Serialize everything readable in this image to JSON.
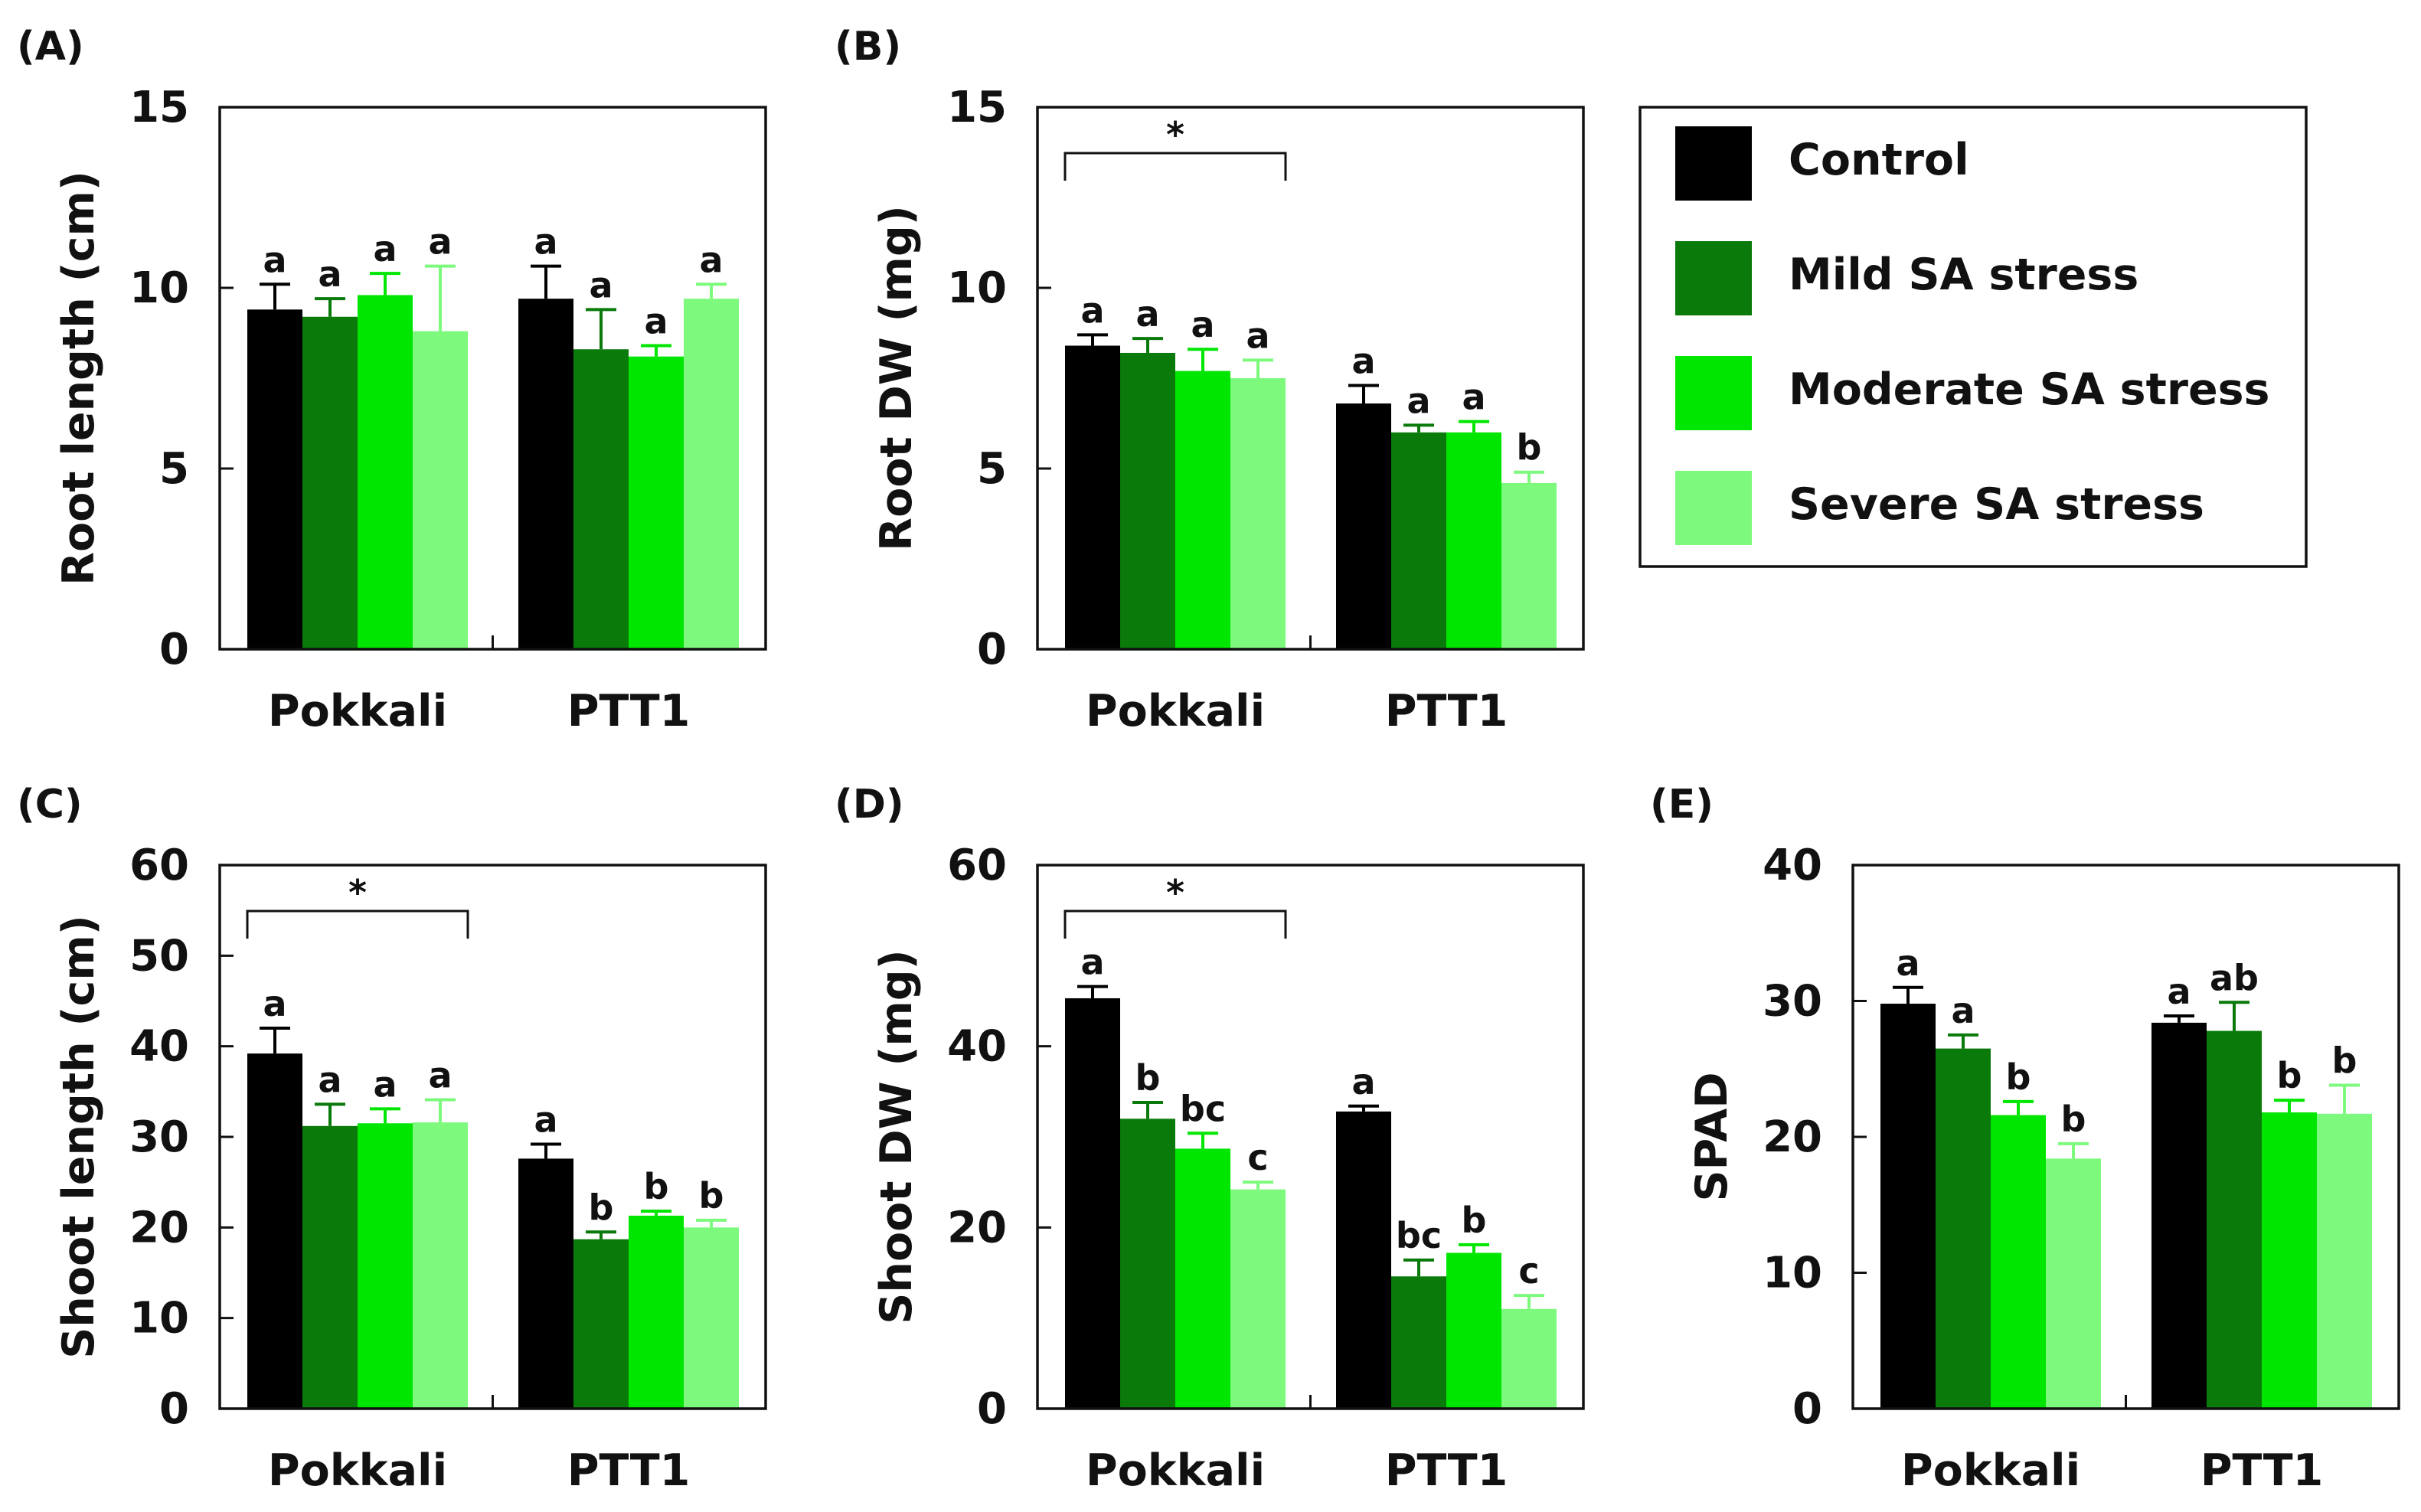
{
  "figure": {
    "legend": {
      "entries": [
        {
          "label": "Control",
          "color": "#000000"
        },
        {
          "label": "Mild SA stress",
          "color": "#0a7a0a"
        },
        {
          "label": "Moderate SA stress",
          "color": "#00e600"
        },
        {
          "label": "Severe SA stress",
          "color": "#7dfa7d"
        }
      ]
    }
  },
  "chart_data": [
    {
      "panel": "(A)",
      "type": "bar",
      "ylabel": "Root length (cm)",
      "ylim": [
        0,
        15
      ],
      "yticks": [
        "0",
        "5",
        "10",
        "15"
      ],
      "categories": [
        "Pokkali",
        "PTT1"
      ],
      "series": [
        {
          "name": "Control",
          "values": [
            9.4,
            9.7
          ],
          "errors": [
            0.7,
            0.9
          ],
          "letters": [
            "a",
            "a"
          ]
        },
        {
          "name": "Mild SA stress",
          "values": [
            9.2,
            8.3
          ],
          "errors": [
            0.5,
            1.1
          ],
          "letters": [
            "a",
            "a"
          ]
        },
        {
          "name": "Moderate SA stress",
          "values": [
            9.8,
            8.1
          ],
          "errors": [
            0.6,
            0.3
          ],
          "letters": [
            "a",
            "a"
          ]
        },
        {
          "name": "Severe SA stress",
          "values": [
            8.8,
            9.7
          ],
          "errors": [
            1.8,
            0.4
          ],
          "letters": [
            "a",
            "a"
          ]
        }
      ],
      "significance": null
    },
    {
      "panel": "(B)",
      "type": "bar",
      "ylabel": "Root DW (mg)",
      "ylim": [
        0,
        15
      ],
      "yticks": [
        "0",
        "5",
        "10",
        "15"
      ],
      "categories": [
        "Pokkali",
        "PTT1"
      ],
      "series": [
        {
          "name": "Control",
          "values": [
            8.4,
            6.8
          ],
          "errors": [
            0.3,
            0.5
          ],
          "letters": [
            "a",
            "a"
          ]
        },
        {
          "name": "Mild SA stress",
          "values": [
            8.2,
            6.0
          ],
          "errors": [
            0.4,
            0.2
          ],
          "letters": [
            "a",
            "a"
          ]
        },
        {
          "name": "Moderate SA stress",
          "values": [
            7.7,
            6.0
          ],
          "errors": [
            0.6,
            0.3
          ],
          "letters": [
            "a",
            "a"
          ]
        },
        {
          "name": "Severe SA stress",
          "values": [
            7.5,
            4.6
          ],
          "errors": [
            0.5,
            0.3
          ],
          "letters": [
            "a",
            "b"
          ]
        }
      ],
      "significance": {
        "group": 0,
        "mark": "*"
      }
    },
    {
      "panel": "(C)",
      "type": "bar",
      "ylabel": "Shoot length (cm)",
      "ylim": [
        0,
        60
      ],
      "yticks": [
        "0",
        "10",
        "20",
        "30",
        "40",
        "50",
        "60"
      ],
      "categories": [
        "Pokkali",
        "PTT1"
      ],
      "series": [
        {
          "name": "Control",
          "values": [
            39.2,
            27.6
          ],
          "errors": [
            2.8,
            1.6
          ],
          "letters": [
            "a",
            "a"
          ]
        },
        {
          "name": "Mild SA stress",
          "values": [
            31.2,
            18.7
          ],
          "errors": [
            2.4,
            0.8
          ],
          "letters": [
            "a",
            "b"
          ]
        },
        {
          "name": "Moderate SA stress",
          "values": [
            31.5,
            21.3
          ],
          "errors": [
            1.6,
            0.5
          ],
          "letters": [
            "a",
            "b"
          ]
        },
        {
          "name": "Severe SA stress",
          "values": [
            31.6,
            20.0
          ],
          "errors": [
            2.5,
            0.8
          ],
          "letters": [
            "a",
            "b"
          ]
        }
      ],
      "significance": {
        "group": 0,
        "mark": "*"
      }
    },
    {
      "panel": "(D)",
      "type": "bar",
      "ylabel": "Shoot DW (mg)",
      "ylim": [
        0,
        60
      ],
      "yticks": [
        "0",
        "20",
        "40",
        "60"
      ],
      "categories": [
        "Pokkali",
        "PTT1"
      ],
      "series": [
        {
          "name": "Control",
          "values": [
            45.3,
            32.8
          ],
          "errors": [
            1.3,
            0.6
          ],
          "letters": [
            "a",
            "a"
          ]
        },
        {
          "name": "Mild SA stress",
          "values": [
            32.0,
            14.6
          ],
          "errors": [
            1.8,
            1.8
          ],
          "letters": [
            "b",
            "bc"
          ]
        },
        {
          "name": "Moderate SA stress",
          "values": [
            28.7,
            17.2
          ],
          "errors": [
            1.7,
            0.9
          ],
          "letters": [
            "bc",
            "b"
          ]
        },
        {
          "name": "Severe SA stress",
          "values": [
            24.2,
            11.0
          ],
          "errors": [
            0.8,
            1.5
          ],
          "letters": [
            "c",
            "c"
          ]
        }
      ],
      "significance": {
        "group": 0,
        "mark": "*"
      }
    },
    {
      "panel": "(E)",
      "type": "bar",
      "ylabel": "SPAD",
      "ylim": [
        0,
        40
      ],
      "yticks": [
        "0",
        "10",
        "20",
        "30",
        "40"
      ],
      "categories": [
        "Pokkali",
        "PTT1"
      ],
      "series": [
        {
          "name": "Control",
          "values": [
            29.8,
            28.4
          ],
          "errors": [
            1.2,
            0.5
          ],
          "letters": [
            "a",
            "a"
          ]
        },
        {
          "name": "Mild SA stress",
          "values": [
            26.5,
            27.8
          ],
          "errors": [
            1.0,
            2.1
          ],
          "letters": [
            "a",
            "ab"
          ]
        },
        {
          "name": "Moderate SA stress",
          "values": [
            21.6,
            21.8
          ],
          "errors": [
            1.0,
            0.9
          ],
          "letters": [
            "b",
            "b"
          ]
        },
        {
          "name": "Severe SA stress",
          "values": [
            18.4,
            21.7
          ],
          "errors": [
            1.1,
            2.1
          ],
          "letters": [
            "b",
            "b"
          ]
        }
      ],
      "significance": null
    }
  ]
}
